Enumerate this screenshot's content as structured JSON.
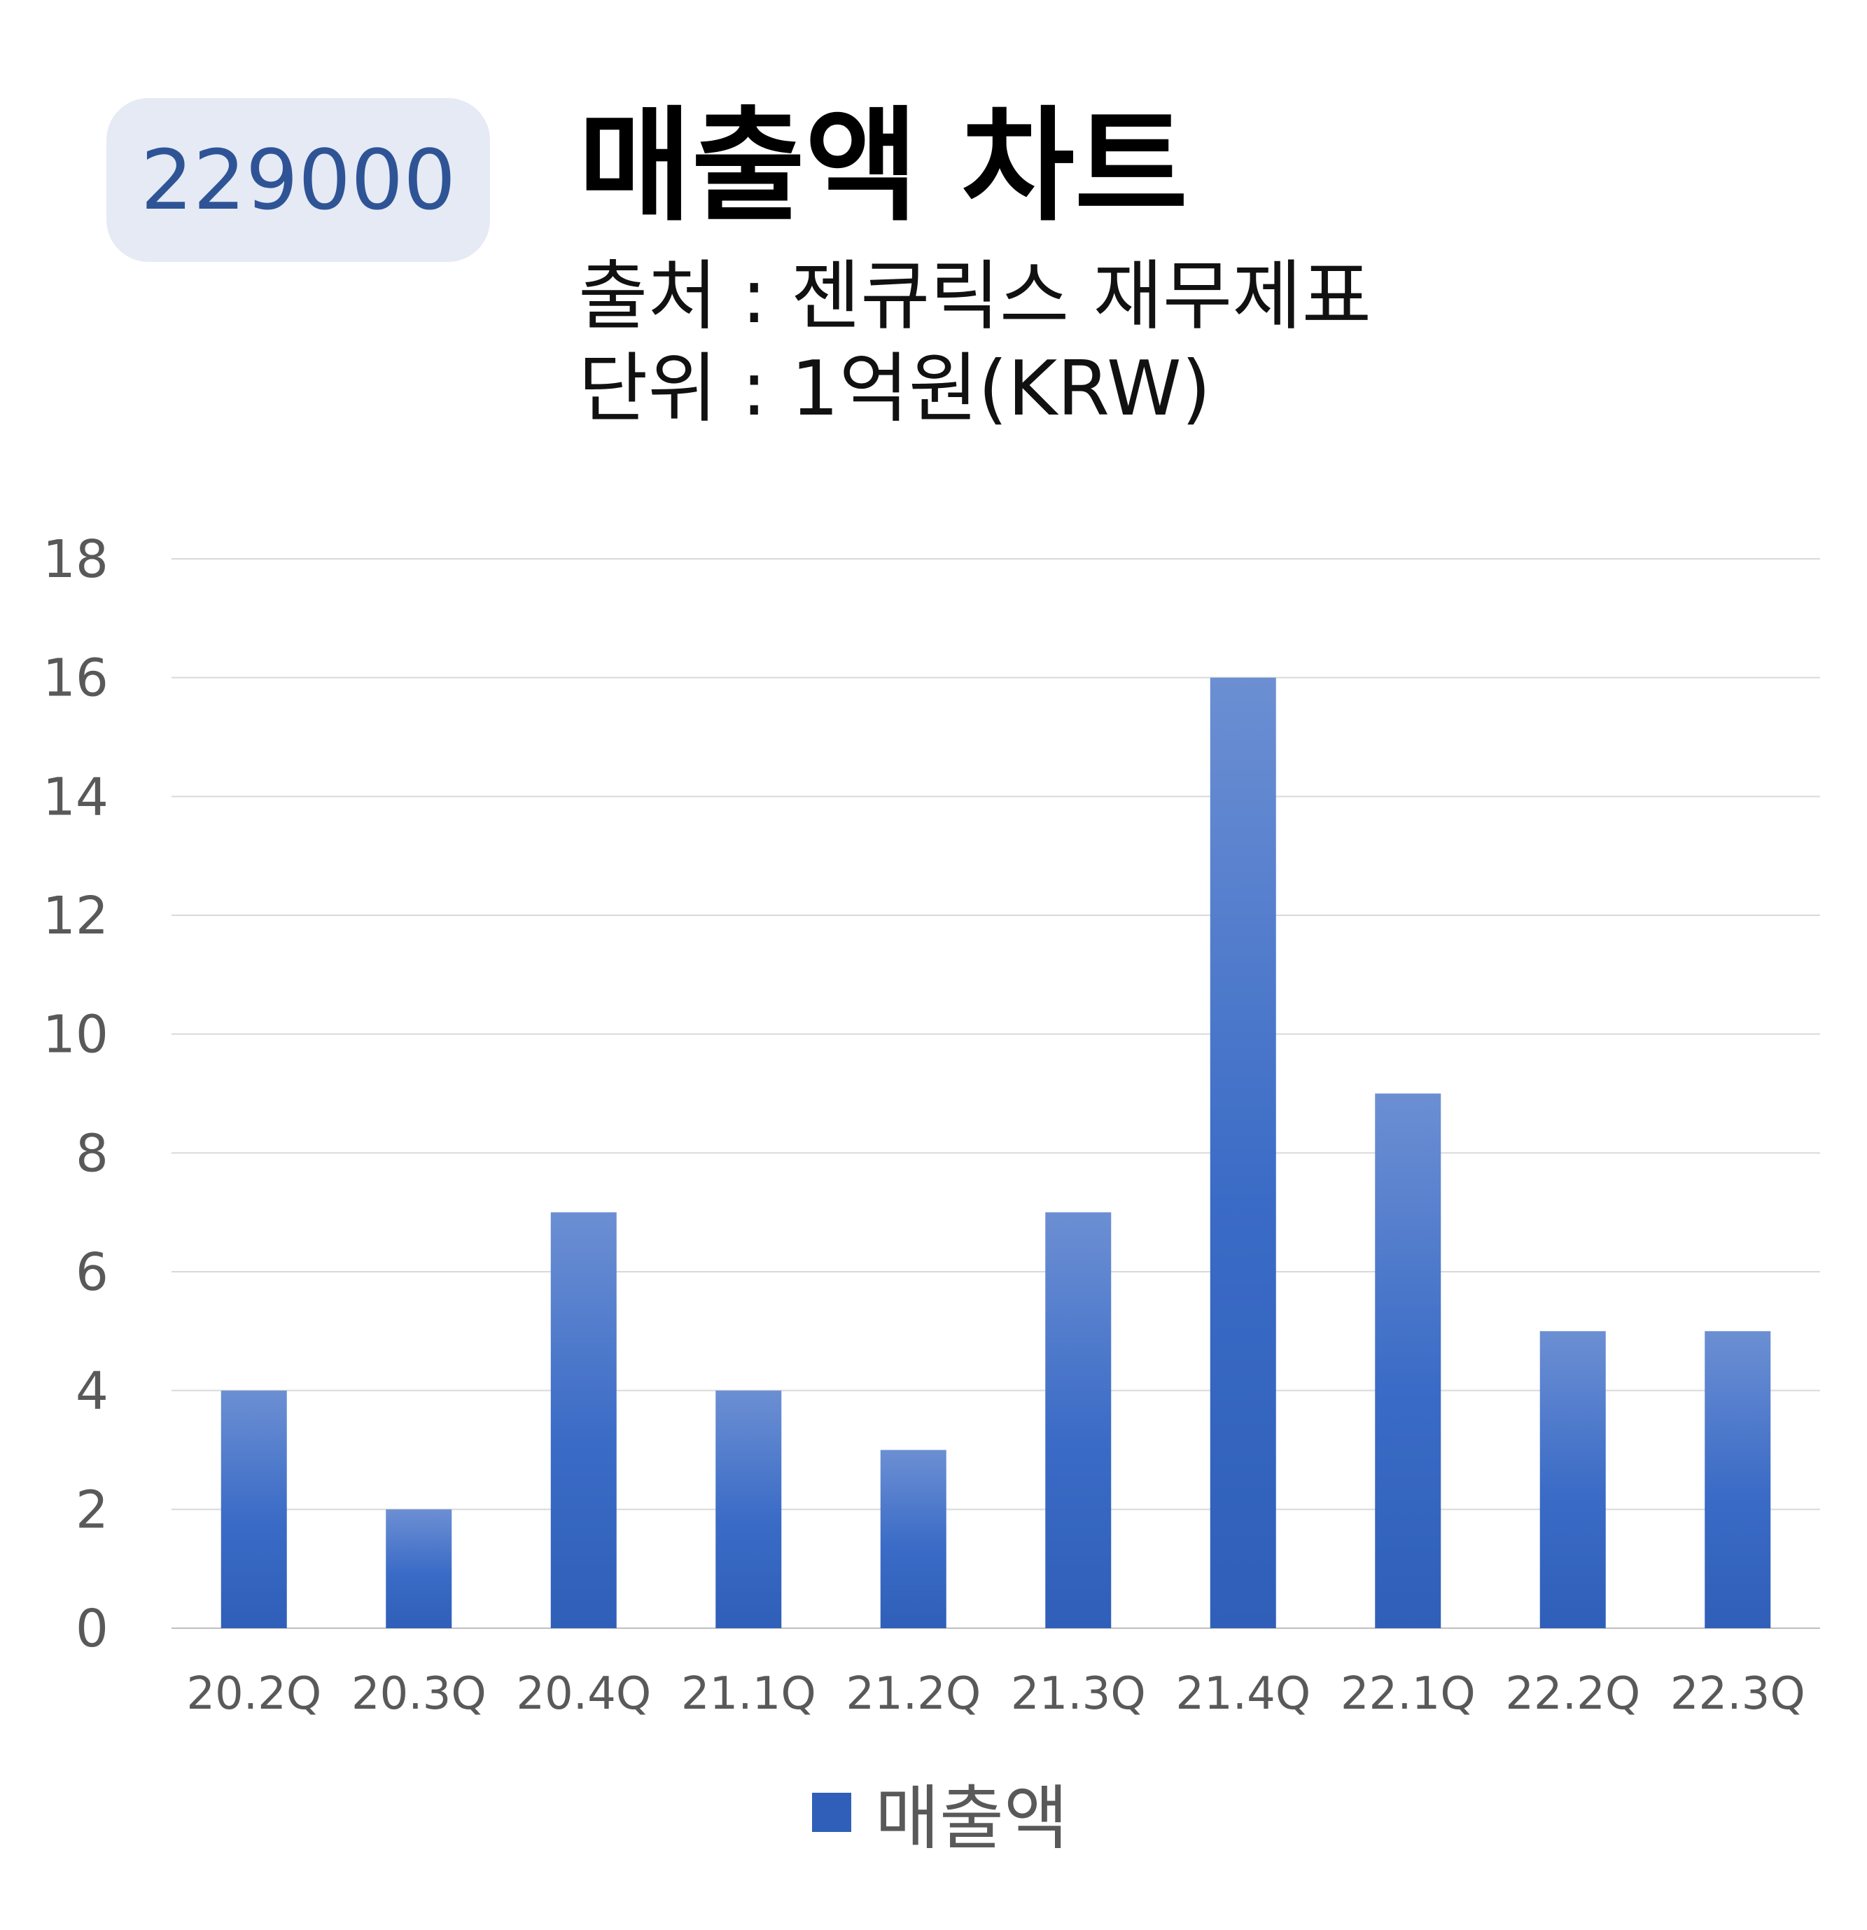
{
  "badge": {
    "text": "229000"
  },
  "header": {
    "title": "매출액 차트",
    "source": "출처 : 젠큐릭스 재무제표",
    "unit": "단위 : 1억원(KRW)"
  },
  "chart_data": {
    "type": "bar",
    "categories": [
      "20.2Q",
      "20.3Q",
      "20.4Q",
      "21.1Q",
      "21.2Q",
      "21.3Q",
      "21.4Q",
      "22.1Q",
      "22.2Q",
      "22.3Q"
    ],
    "series": [
      {
        "name": "매출액",
        "values": [
          4,
          2,
          7,
          4,
          3,
          7,
          16,
          9,
          5,
          5
        ]
      }
    ],
    "yticks": [
      0,
      2,
      4,
      6,
      8,
      10,
      12,
      14,
      16,
      18
    ],
    "ylim": [
      0,
      18
    ],
    "grid": true,
    "legend_position": "bottom",
    "colors": {
      "bar_top": "#6c8fd3",
      "bar_bottom": "#2f5fb8",
      "grid": "#d9d9d9",
      "axis": "#bfbfbf"
    }
  }
}
